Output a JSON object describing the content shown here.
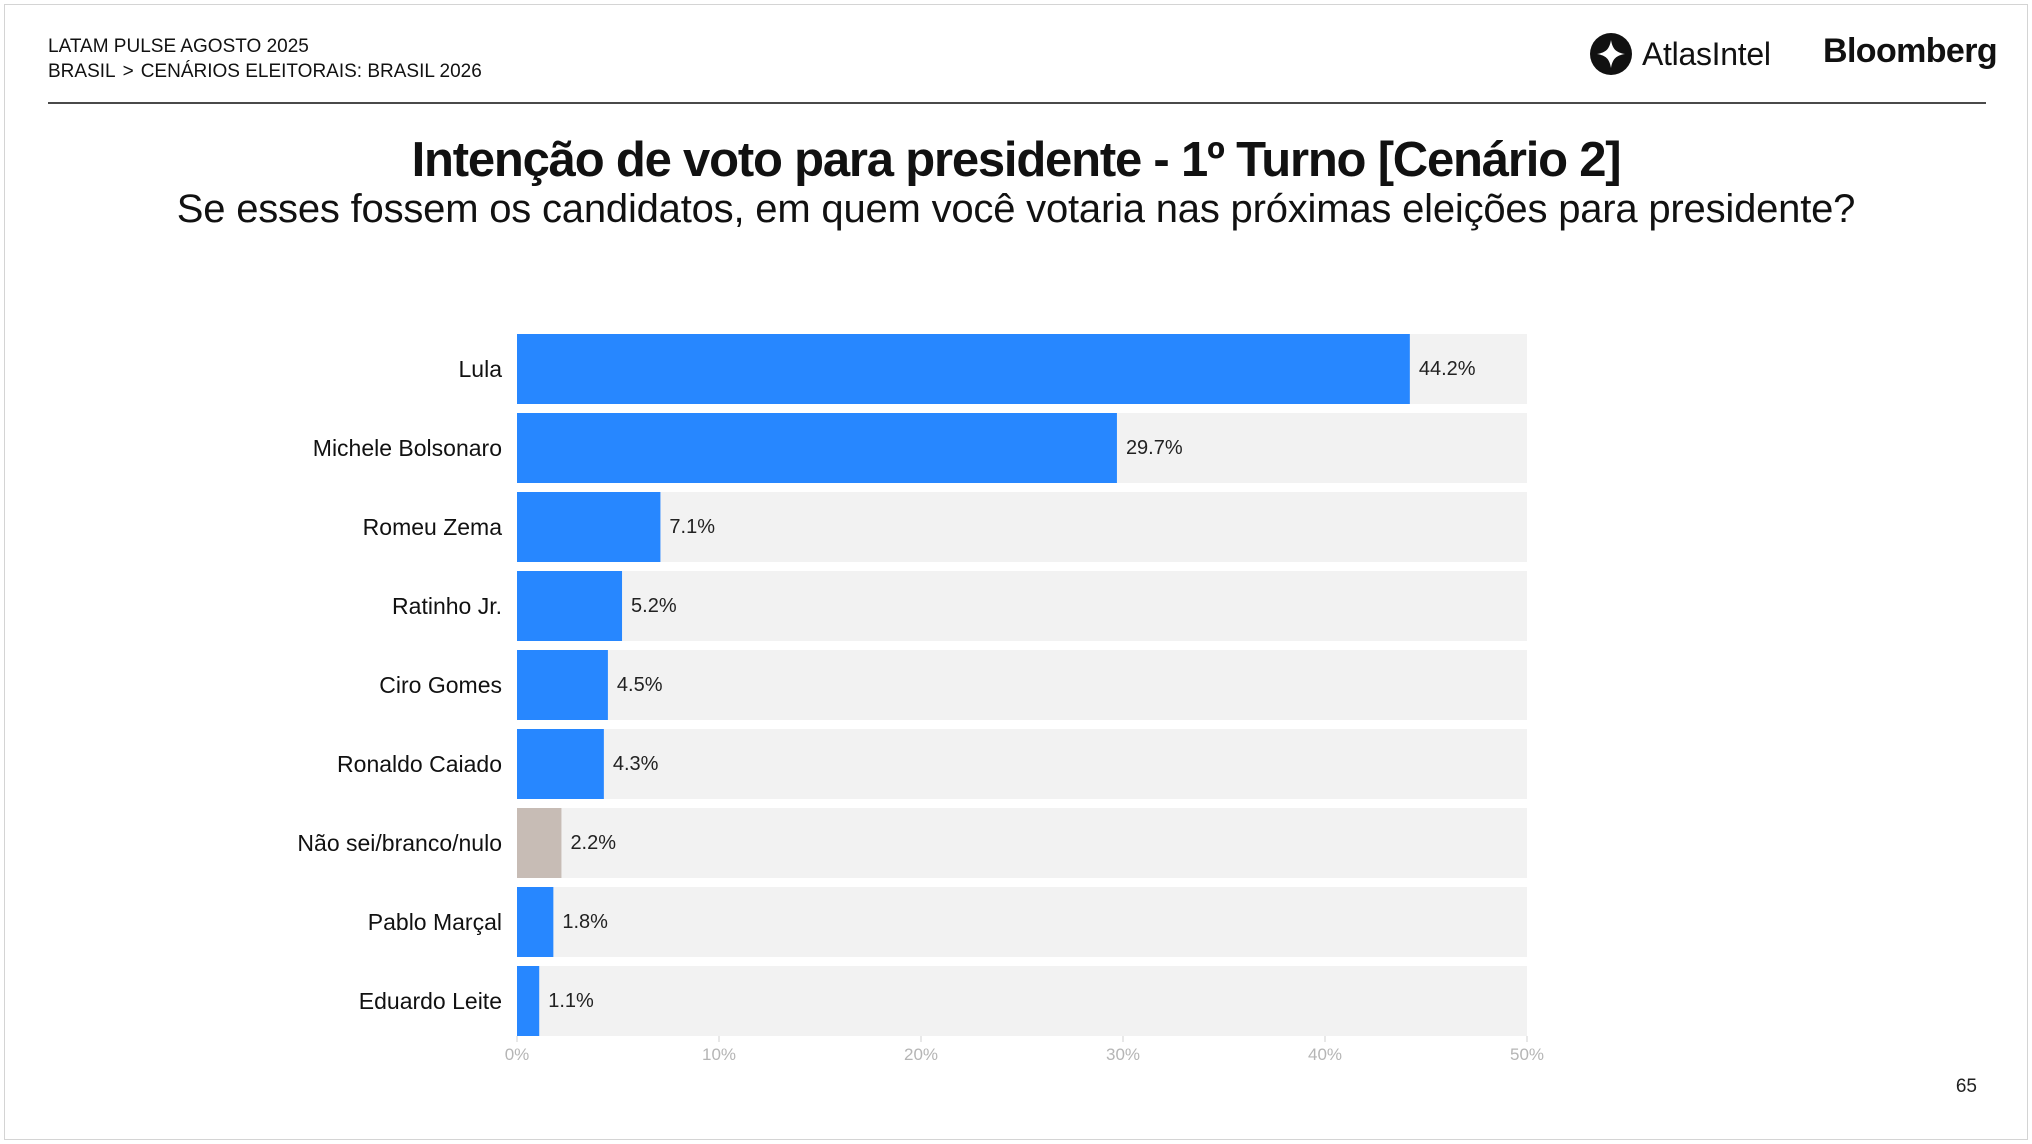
{
  "header": {
    "line1": "LATAM PULSE AGOSTO 2025",
    "crumb_first": "BRASIL",
    "crumb_separator": ">",
    "crumb_second": "CENÁRIOS ELEITORAIS: BRASIL 2026"
  },
  "logos": {
    "atlas": "AtlasIntel",
    "atlas_icon": "atlasintel-logo-icon",
    "bloomberg": "Bloomberg"
  },
  "page_number": "65",
  "colors": {
    "candidate_bar": "#2787ff",
    "undecided_bar": "#c7bcb5",
    "track": "#f2f2f2",
    "axis_text": "#b5b5b5"
  },
  "chart_data": {
    "type": "bar",
    "orientation": "horizontal",
    "title": "Intenção de voto para presidente - 1º Turno [Cenário 2]",
    "subtitle": "Se esses fossem os candidatos, em quem você votaria nas próximas eleições para presidente?",
    "xlabel": "",
    "ylabel": "",
    "xlim": [
      0,
      50
    ],
    "grid": false,
    "legend": "none",
    "x_ticks": [
      0,
      10,
      20,
      30,
      40,
      50
    ],
    "x_tick_labels": [
      "0%",
      "10%",
      "20%",
      "30%",
      "40%",
      "50%"
    ],
    "categories": [
      "Lula",
      "Michele Bolsonaro",
      "Romeu Zema",
      "Ratinho Jr.",
      "Ciro Gomes",
      "Ronaldo Caiado",
      "Não sei/branco/nulo",
      "Pablo Marçal",
      "Eduardo Leite"
    ],
    "values": [
      44.2,
      29.7,
      7.1,
      5.2,
      4.5,
      4.3,
      2.2,
      1.8,
      1.1
    ],
    "value_labels": [
      "44.2%",
      "29.7%",
      "7.1%",
      "5.2%",
      "4.5%",
      "4.3%",
      "2.2%",
      "1.8%",
      "1.1%"
    ],
    "bar_colors": [
      "#2787ff",
      "#2787ff",
      "#2787ff",
      "#2787ff",
      "#2787ff",
      "#2787ff",
      "#c7bcb5",
      "#2787ff",
      "#2787ff"
    ]
  }
}
